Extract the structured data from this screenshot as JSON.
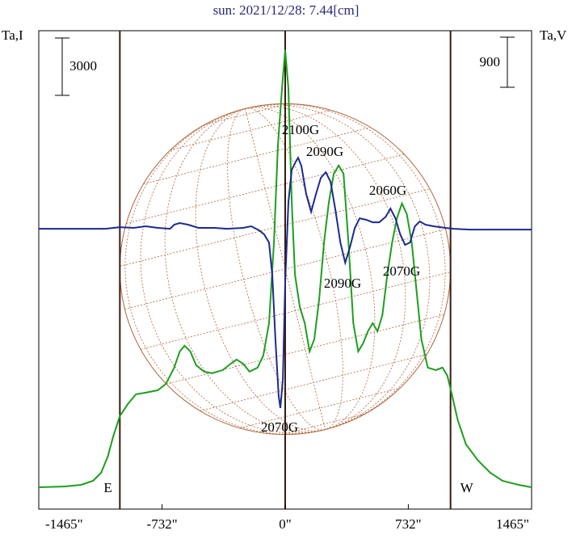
{
  "chart_data": {
    "type": "line",
    "title": "sun: 2021/12/28: 7.44[cm]",
    "y_label": "Ta,I",
    "y2_label": "Ta,V",
    "xlim": [
      -1465,
      1465
    ],
    "xticks": [
      {
        "value": -1465,
        "label": "-1465\""
      },
      {
        "value": -732,
        "label": "-732\""
      },
      {
        "value": 0,
        "label": "0\""
      },
      {
        "value": 732,
        "label": "732\""
      },
      {
        "value": 1465,
        "label": "1465\""
      }
    ],
    "ylim": [
      0,
      25000
    ],
    "y2lim": [
      -5040,
      3560
    ],
    "scale_bar": 3000,
    "scale_bar2": 900,
    "vlines": [
      -983,
      0,
      983
    ],
    "disk_radius": 983,
    "limb_labels": [
      "E",
      "W"
    ],
    "annotations": [
      "2100G",
      "2090G",
      "2060G",
      "2090G",
      "2070G",
      "2070G"
    ],
    "series": [
      {
        "name": "I",
        "color": "#1e9e1e",
        "x": [
          -1465,
          -1311,
          -1214,
          -1142,
          -1094,
          -1055,
          -1022,
          -983,
          -935,
          -887,
          -829,
          -757,
          -709,
          -660,
          -627,
          -598,
          -564,
          -530,
          -482,
          -434,
          -371,
          -323,
          -289,
          -251,
          -212,
          -164,
          -130,
          -96,
          -67,
          -43,
          -19,
          0,
          19,
          39,
          58,
          87,
          116,
          145,
          173,
          202,
          231,
          260,
          289,
          318,
          347,
          376,
          405,
          434,
          463,
          492,
          520,
          549,
          578,
          607,
          636,
          665,
          694,
          723,
          752,
          781,
          810,
          848,
          896,
          935,
          964,
          993,
          1026,
          1075,
          1147,
          1219,
          1292,
          1388,
          1465
        ],
        "values": [
          1141,
          1183,
          1268,
          1479,
          1901,
          2746,
          3803,
          4859,
          5493,
          6000,
          6084,
          6211,
          6549,
          7394,
          8239,
          8535,
          8239,
          7521,
          7183,
          7098,
          7267,
          7605,
          7816,
          7605,
          7183,
          7394,
          8028,
          9718,
          13943,
          19013,
          21970,
          23998,
          21970,
          16055,
          12253,
          10563,
          9718,
          8239,
          8873,
          10985,
          13943,
          16055,
          17534,
          17956,
          17534,
          13943,
          9718,
          8239,
          8661,
          9295,
          9718,
          9295,
          10140,
          12253,
          13943,
          15210,
          15971,
          15421,
          13943,
          11408,
          8873,
          7394,
          7267,
          7394,
          6971,
          5915,
          4648,
          3380,
          2535,
          1901,
          1479,
          1268,
          1141
        ]
      },
      {
        "name": "V",
        "color": "#1c2a8e",
        "axis": "y2",
        "x": [
          -1465,
          -1070,
          -983,
          -901,
          -829,
          -757,
          -684,
          -660,
          -627,
          -578,
          -516,
          -419,
          -347,
          -251,
          -202,
          -154,
          -125,
          -96,
          -77,
          -58,
          -39,
          -29,
          -14,
          0,
          19,
          39,
          63,
          77,
          96,
          125,
          154,
          183,
          212,
          241,
          270,
          299,
          328,
          357,
          386,
          414,
          443,
          482,
          520,
          559,
          598,
          626,
          655,
          684,
          713,
          742,
          771,
          800,
          834,
          882,
          954,
          1002,
          1099,
          1465
        ],
        "values": [
          0,
          0,
          29,
          15,
          44,
          15,
          0,
          73,
          102,
          73,
          15,
          15,
          0,
          15,
          44,
          -29,
          -102,
          -247,
          -827,
          -1989,
          -3005,
          -3223,
          -2715,
          -973,
          479,
          1060,
          1205,
          1277,
          1132,
          624,
          305,
          624,
          914,
          1016,
          842,
          334,
          -247,
          -610,
          -319,
          15,
          189,
          160,
          116,
          116,
          218,
          363,
          189,
          -102,
          -290,
          -247,
          44,
          131,
          73,
          44,
          15,
          0,
          -15,
          -15
        ]
      }
    ]
  }
}
